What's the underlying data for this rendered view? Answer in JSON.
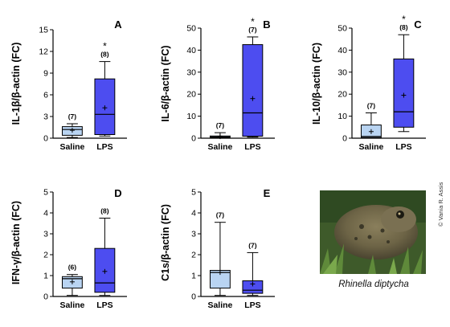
{
  "chart_data": [
    {
      "type": "box",
      "panel_label": "A",
      "ylabel": "IL-1β/β-actin (FC)",
      "ylim": [
        0,
        15
      ],
      "yticks": [
        0,
        3,
        6,
        9,
        12,
        15
      ],
      "ytick_labels": [
        "0",
        "3",
        "6",
        "9",
        "12",
        "15"
      ],
      "categories": [
        "Saline",
        "LPS"
      ],
      "boxes": [
        {
          "category": "Saline",
          "n_label": "(7)",
          "whisker_low": 0.1,
          "q1": 0.4,
          "median": 1.2,
          "q3": 1.6,
          "whisker_high": 2.0,
          "mean": 1.1,
          "color": "#b9d4f2",
          "significance": ""
        },
        {
          "category": "LPS",
          "n_label": "(8)",
          "whisker_low": 0.3,
          "q1": 0.5,
          "median": 3.3,
          "q3": 8.2,
          "whisker_high": 10.6,
          "mean": 4.2,
          "color": "#4d4df0",
          "significance": "*"
        }
      ]
    },
    {
      "type": "box",
      "panel_label": "B",
      "ylabel": "IL-6/β-actin (FC)",
      "ylim": [
        0,
        50
      ],
      "yticks": [
        0,
        10,
        20,
        30,
        40,
        50
      ],
      "ytick_labels": [
        "0",
        "10",
        "20",
        "30",
        "40",
        "50"
      ],
      "categories": [
        "Saline",
        "LPS"
      ],
      "boxes": [
        {
          "category": "Saline",
          "n_label": "(7)",
          "whisker_low": 0.1,
          "q1": 0.3,
          "median": 0.6,
          "q3": 1.0,
          "whisker_high": 2.5,
          "mean": 0.7,
          "color": "#b9d4f2",
          "significance": ""
        },
        {
          "category": "LPS",
          "n_label": "(7)",
          "whisker_low": 0.5,
          "q1": 0.9,
          "median": 11.5,
          "q3": 42.5,
          "whisker_high": 46.0,
          "mean": 18.0,
          "color": "#4d4df0",
          "significance": "*"
        }
      ]
    },
    {
      "type": "box",
      "panel_label": "C",
      "ylabel": "IL-10/β-actin (FC)",
      "ylim": [
        0,
        50
      ],
      "yticks": [
        0,
        10,
        20,
        30,
        40,
        50
      ],
      "ytick_labels": [
        "0",
        "10",
        "20",
        "30",
        "40",
        "50"
      ],
      "categories": [
        "Saline",
        "LPS"
      ],
      "boxes": [
        {
          "category": "Saline",
          "n_label": "(7)",
          "whisker_low": 0.1,
          "q1": 0.3,
          "median": 0.8,
          "q3": 6.0,
          "whisker_high": 11.5,
          "mean": 3.0,
          "color": "#b9d4f2",
          "significance": ""
        },
        {
          "category": "LPS",
          "n_label": "(8)",
          "whisker_low": 3.0,
          "q1": 5.0,
          "median": 12.0,
          "q3": 36.0,
          "whisker_high": 47.0,
          "mean": 19.5,
          "color": "#4d4df0",
          "significance": "*"
        }
      ]
    },
    {
      "type": "box",
      "panel_label": "D",
      "ylabel": "IFN-γ/β-actin (FC)",
      "ylim": [
        0,
        5
      ],
      "yticks": [
        0,
        1,
        2,
        3,
        4,
        5
      ],
      "ytick_labels": [
        "0",
        "1",
        "2",
        "3",
        "4",
        "5"
      ],
      "categories": [
        "Saline",
        "LPS"
      ],
      "boxes": [
        {
          "category": "Saline",
          "n_label": "(6)",
          "whisker_low": 0.05,
          "q1": 0.4,
          "median": 0.85,
          "q3": 0.95,
          "whisker_high": 1.05,
          "mean": 0.7,
          "color": "#b9d4f2",
          "significance": ""
        },
        {
          "category": "LPS",
          "n_label": "(8)",
          "whisker_low": 0.05,
          "q1": 0.2,
          "median": 0.65,
          "q3": 2.3,
          "whisker_high": 3.75,
          "mean": 1.2,
          "color": "#4d4df0",
          "significance": ""
        }
      ]
    },
    {
      "type": "box",
      "panel_label": "E",
      "ylabel": "C1s/β-actin (FC)",
      "ylim": [
        0,
        5
      ],
      "yticks": [
        0,
        1,
        2,
        3,
        4,
        5
      ],
      "ytick_labels": [
        "0",
        "1",
        "2",
        "3",
        "4",
        "5"
      ],
      "categories": [
        "Saline",
        "LPS"
      ],
      "boxes": [
        {
          "category": "Saline",
          "n_label": "(7)",
          "whisker_low": 0.05,
          "q1": 0.4,
          "median": 1.15,
          "q3": 1.25,
          "whisker_high": 3.55,
          "mean": 1.15,
          "color": "#b9d4f2",
          "significance": ""
        },
        {
          "category": "LPS",
          "n_label": "(7)",
          "whisker_low": 0.05,
          "q1": 0.15,
          "median": 0.3,
          "q3": 0.75,
          "whisker_high": 2.1,
          "mean": 0.6,
          "color": "#4d4df0",
          "significance": ""
        }
      ]
    }
  ],
  "photo": {
    "caption": "Rhinella diptycha",
    "credit": "© Vania R. Assis"
  }
}
